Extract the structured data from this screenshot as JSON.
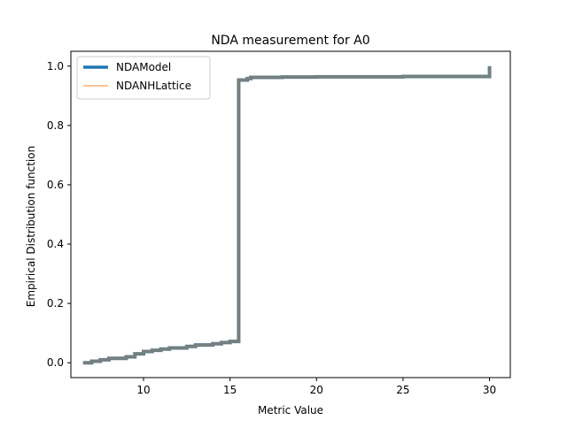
{
  "chart_data": {
    "type": "line",
    "title": "NDA measurement for A0",
    "xlabel": "Metric Value",
    "ylabel": "Empirical Distribution function",
    "xlim": [
      5.8,
      31.2
    ],
    "ylim": [
      -0.05,
      1.05
    ],
    "xticks": [
      10,
      15,
      20,
      25,
      30
    ],
    "yticks": [
      0.0,
      0.2,
      0.4,
      0.6,
      0.8,
      1.0
    ],
    "xtick_labels": [
      "10",
      "15",
      "20",
      "25",
      "30"
    ],
    "ytick_labels": [
      "0.0",
      "0.2",
      "0.4",
      "0.6",
      "0.8",
      "1.0"
    ],
    "grid": false,
    "legend_position": "upper-left",
    "series": [
      {
        "name": "NDAModel",
        "color": "#1f77b4",
        "style": "step",
        "x": [
          6.5,
          7.0,
          7.5,
          8.0,
          9.0,
          9.5,
          10.0,
          10.5,
          11.0,
          11.5,
          12.5,
          13.0,
          14.0,
          14.5,
          15.0,
          15.5,
          15.5,
          16.0,
          16.2,
          18.0,
          20.0,
          25.0,
          30.0,
          30.0
        ],
        "y": [
          0.0,
          0.005,
          0.01,
          0.015,
          0.02,
          0.03,
          0.038,
          0.042,
          0.046,
          0.05,
          0.055,
          0.06,
          0.064,
          0.068,
          0.072,
          0.08,
          0.953,
          0.958,
          0.962,
          0.963,
          0.964,
          0.965,
          0.966,
          1.0
        ]
      },
      {
        "name": "NDANHLattice",
        "color": "#ff7f0e",
        "style": "step",
        "x": [
          6.5,
          7.0,
          7.5,
          8.0,
          9.0,
          9.5,
          10.0,
          10.5,
          11.0,
          11.5,
          12.5,
          13.0,
          14.0,
          14.5,
          15.0,
          15.5,
          15.5,
          16.0,
          16.2,
          18.0,
          20.0,
          25.0,
          30.0,
          30.0
        ],
        "y": [
          0.0,
          0.005,
          0.01,
          0.015,
          0.02,
          0.03,
          0.038,
          0.042,
          0.046,
          0.05,
          0.055,
          0.06,
          0.064,
          0.068,
          0.072,
          0.08,
          0.953,
          0.958,
          0.962,
          0.963,
          0.964,
          0.965,
          0.966,
          1.0
        ]
      }
    ]
  },
  "colors": {
    "overlap_line": "#5f7f8f"
  }
}
